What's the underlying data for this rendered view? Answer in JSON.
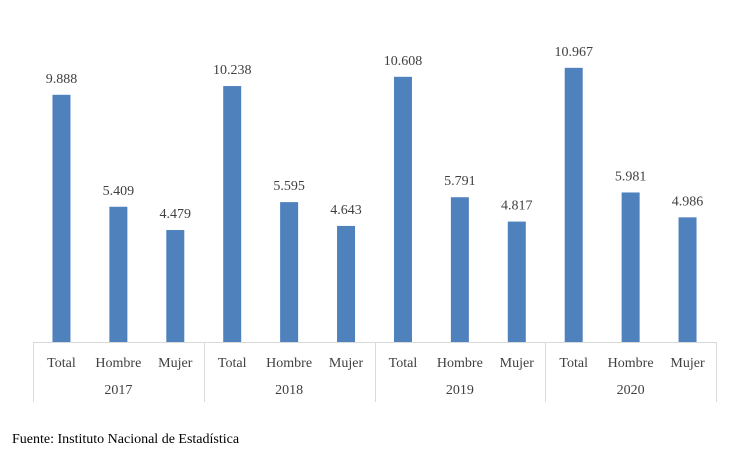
{
  "chart_data": {
    "type": "bar",
    "groups": [
      {
        "year": "2017",
        "categories": [
          "Total",
          "Hombre",
          "Mujer"
        ],
        "values": [
          9.888,
          5.409,
          4.479
        ],
        "labels": [
          "9.888",
          "5.409",
          "4.479"
        ]
      },
      {
        "year": "2018",
        "categories": [
          "Total",
          "Hombre",
          "Mujer"
        ],
        "values": [
          10.238,
          5.595,
          4.643
        ],
        "labels": [
          "10.238",
          "5.595",
          "4.643"
        ]
      },
      {
        "year": "2019",
        "categories": [
          "Total",
          "Hombre",
          "Mujer"
        ],
        "values": [
          10.608,
          5.791,
          4.817
        ],
        "labels": [
          "10.608",
          "5.791",
          "4.817"
        ]
      },
      {
        "year": "2020",
        "categories": [
          "Total",
          "Hombre",
          "Mujer"
        ],
        "values": [
          10.967,
          5.981,
          4.986
        ],
        "labels": [
          "10.967",
          "5.981",
          "4.986"
        ]
      }
    ],
    "ylim": [
      0,
      12
    ],
    "grid": false,
    "legend": false,
    "bar_color": "#4f81bd",
    "axis_color": "#d9d9d9"
  },
  "source_text": "Fuente: Instituto Nacional de Estadística"
}
